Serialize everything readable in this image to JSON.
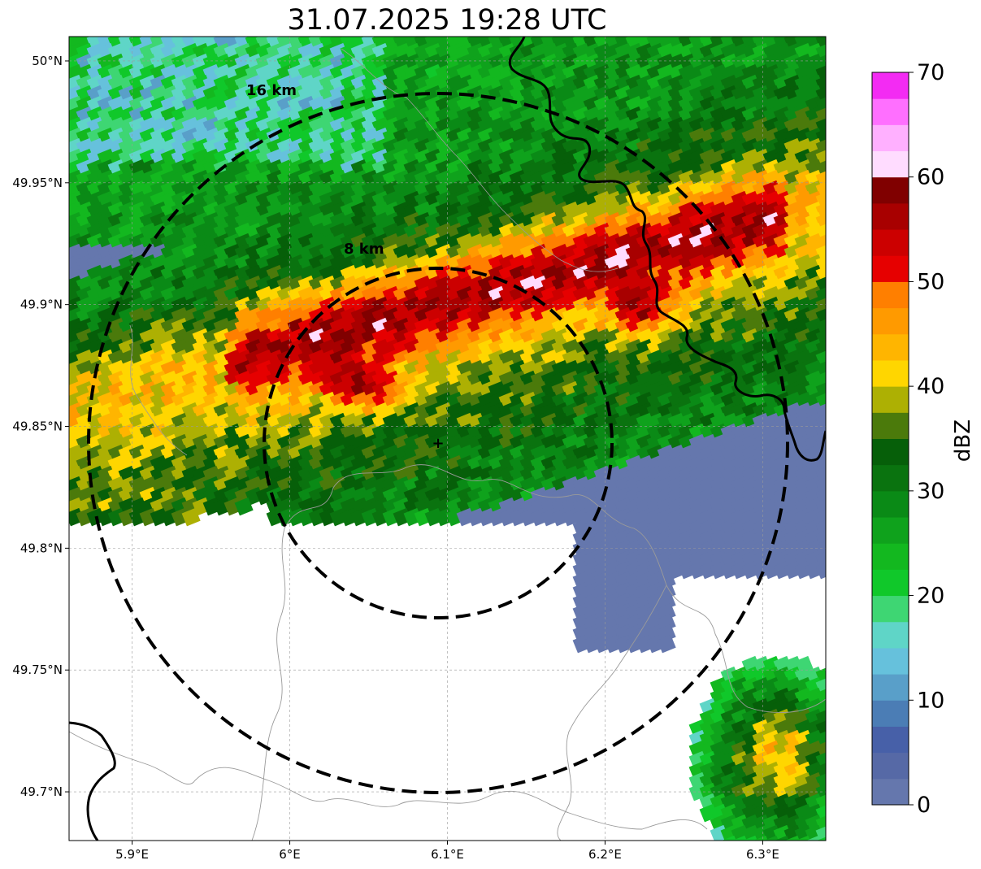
{
  "title": "31.07.2025 19:28 UTC",
  "map": {
    "lon_range": [
      5.86,
      6.34
    ],
    "lat_range": [
      49.68,
      50.01
    ],
    "radar_site": {
      "lon": 6.095,
      "lat": 49.843
    },
    "lon_ticks": [
      {
        "value": 5.9,
        "label": "5.9°E"
      },
      {
        "value": 6.0,
        "label": "6°E"
      },
      {
        "value": 6.1,
        "label": "6.1°E"
      },
      {
        "value": 6.2,
        "label": "6.2°E"
      },
      {
        "value": 6.3,
        "label": "6.3°E"
      }
    ],
    "lat_ticks": [
      {
        "value": 50.0,
        "label": "50°N"
      },
      {
        "value": 49.95,
        "label": "49.95°N"
      },
      {
        "value": 49.9,
        "label": "49.9°N"
      },
      {
        "value": 49.85,
        "label": "49.85°N"
      },
      {
        "value": 49.8,
        "label": "49.8°N"
      },
      {
        "value": 49.75,
        "label": "49.75°N"
      },
      {
        "value": 49.7,
        "label": "49.7°N"
      }
    ],
    "range_rings": [
      {
        "label": "8 km"
      },
      {
        "label": "16 km"
      }
    ]
  },
  "colorbar": {
    "label": "dBZ",
    "ticks": [
      "0",
      "10",
      "20",
      "30",
      "40",
      "50",
      "60",
      "70"
    ],
    "colors": [
      "#6577ad",
      "#5669a6",
      "#4760a8",
      "#4b7db5",
      "#599fc9",
      "#66c1dc",
      "#5fd5c7",
      "#3ed673",
      "#10c82a",
      "#13b81f",
      "#0fa21c",
      "#0a8a16",
      "#0a730f",
      "#065f09",
      "#4b7a0b",
      "#adb003",
      "#ffd600",
      "#ffb500",
      "#ff9a00",
      "#ff7f00",
      "#e60000",
      "#cc0000",
      "#a80000",
      "#800000",
      "#ffdcff",
      "#ffb0ff",
      "#ff6fff",
      "#f32bf3"
    ]
  }
}
